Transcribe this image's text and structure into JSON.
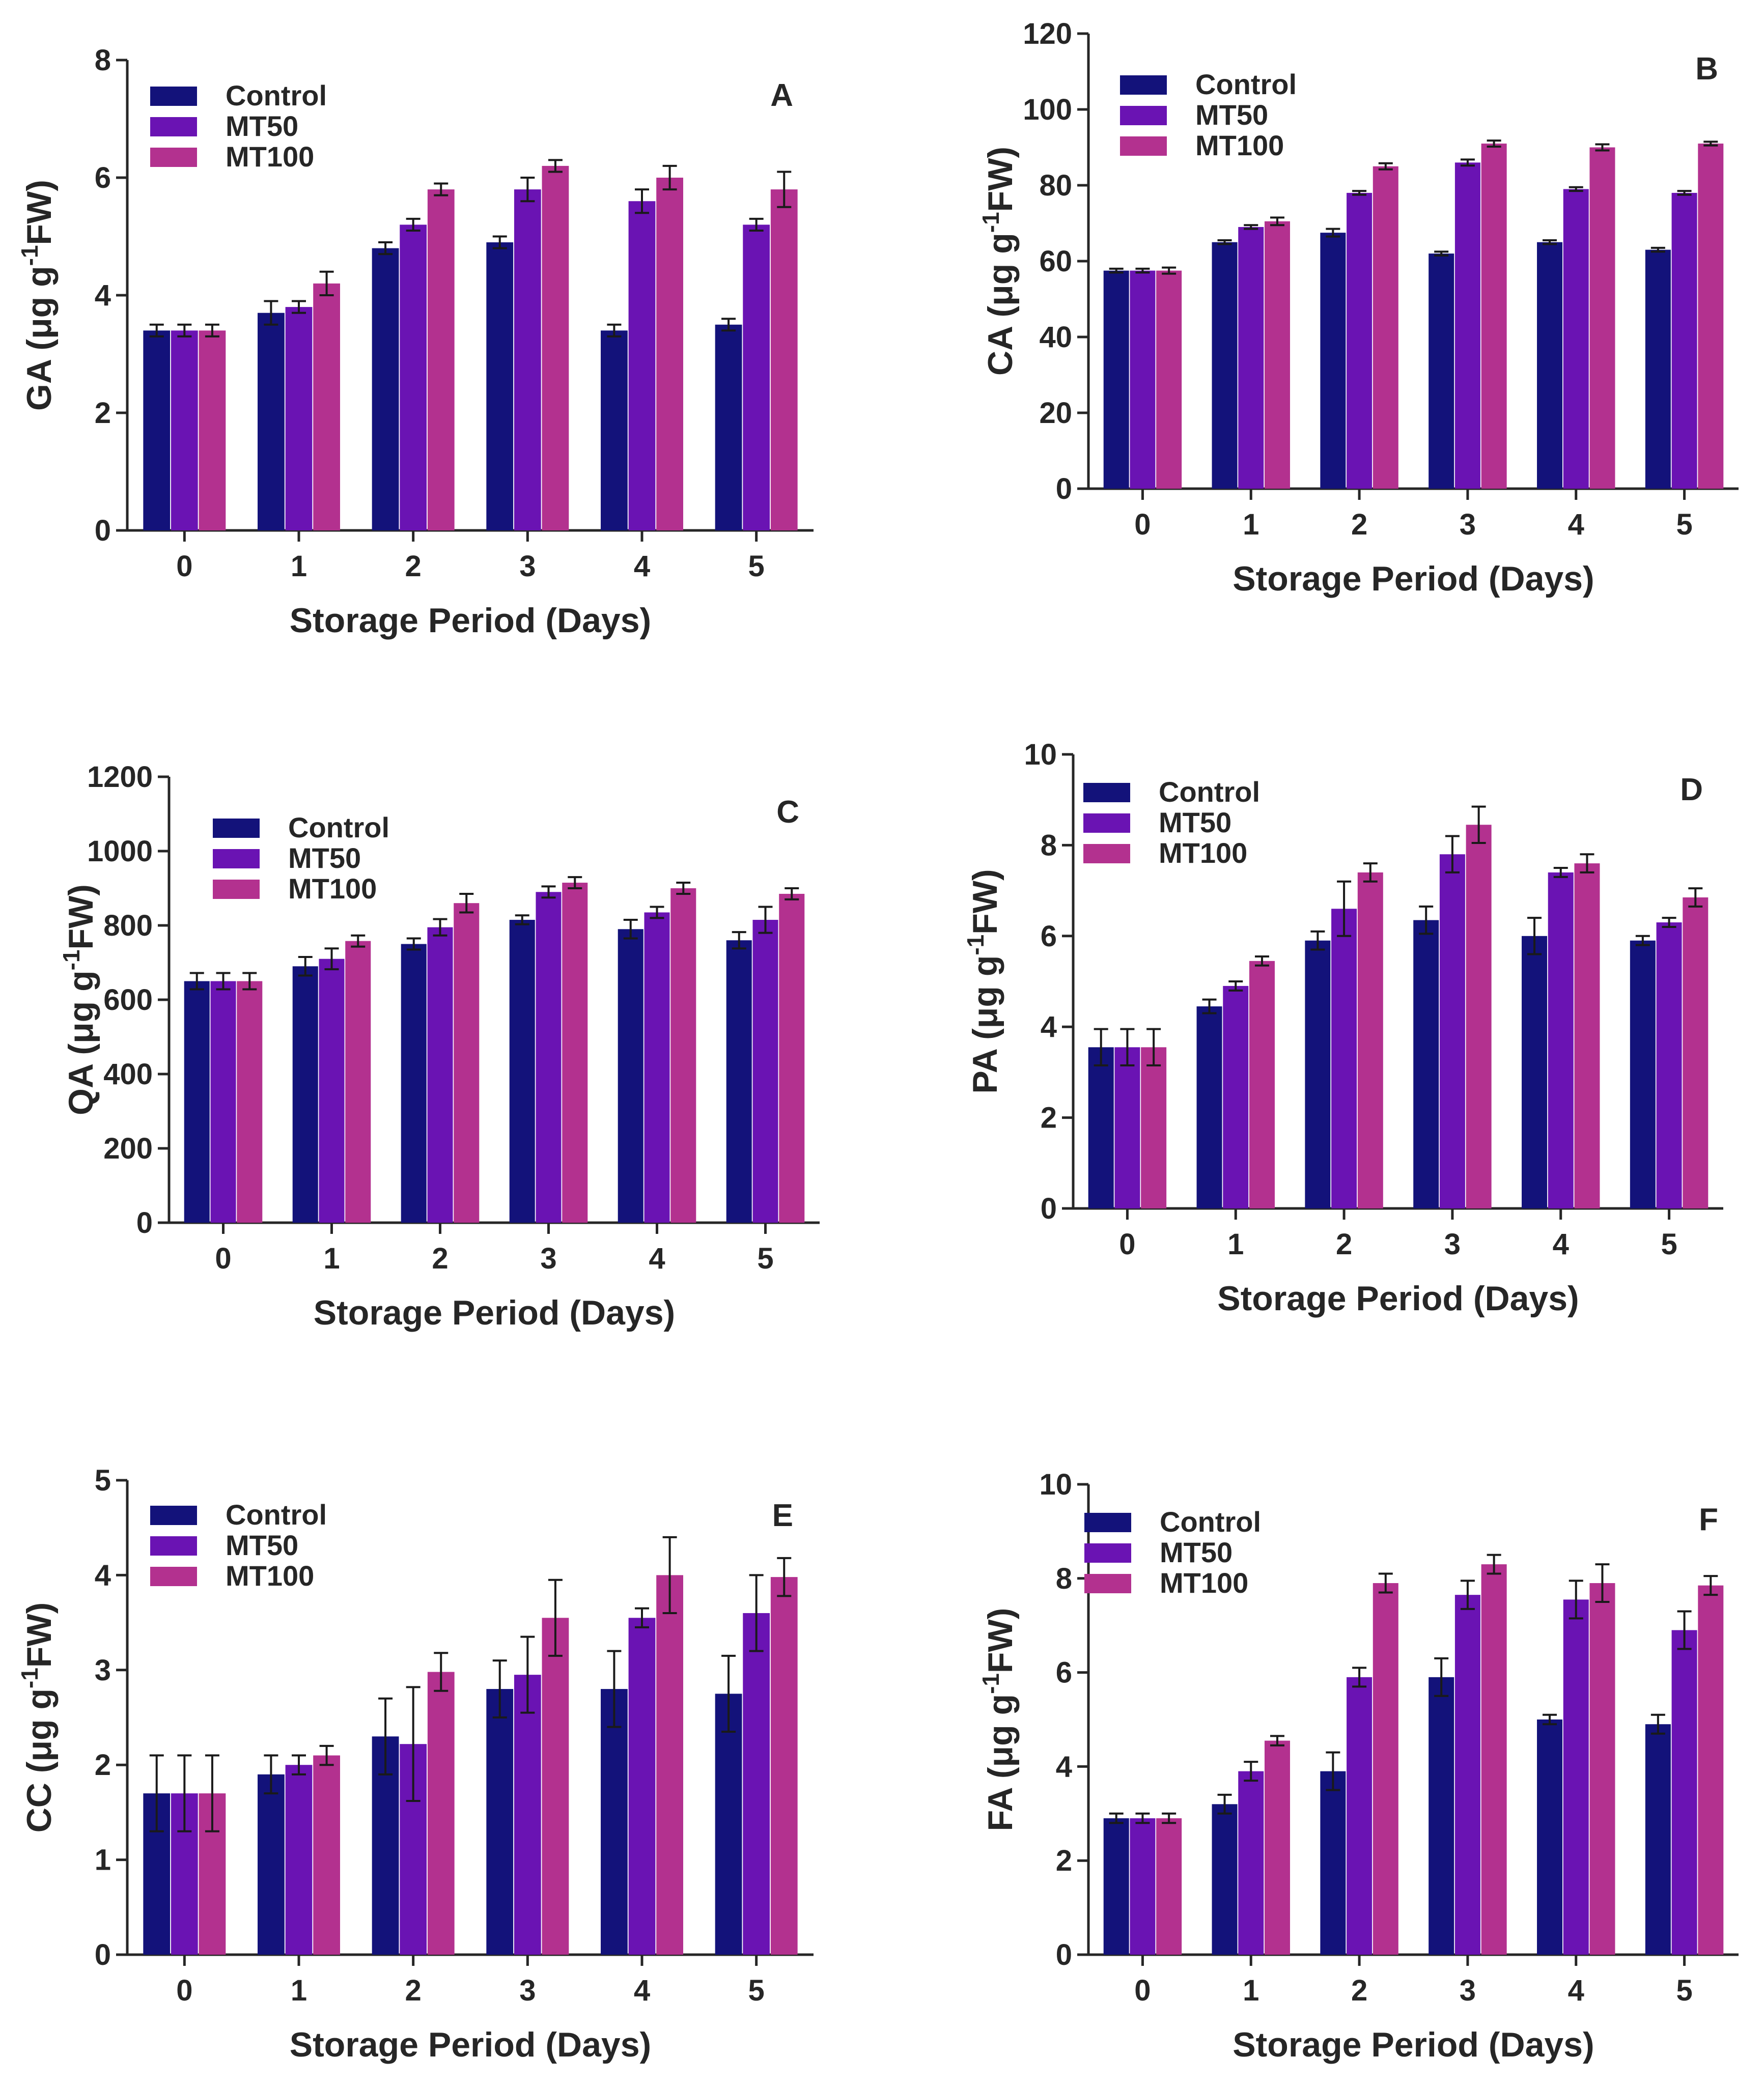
{
  "chart_data": [
    {
      "type": "bar",
      "panel_label": "A",
      "title": "",
      "xlabel": "Storage Period (Days)",
      "ylabel": "GA (μg g-1FW)",
      "ylabel_parts": {
        "prefix": "GA (μg g",
        "sup": "-1",
        "suffix": "FW)"
      },
      "categories": [
        "0",
        "1",
        "2",
        "3",
        "4",
        "5"
      ],
      "ylim": [
        0,
        8
      ],
      "yticks": [
        "0",
        "2",
        "4",
        "6",
        "8"
      ],
      "legend_position": "top-left",
      "series": [
        {
          "name": "Control",
          "values": [
            3.4,
            3.7,
            4.8,
            4.9,
            3.4,
            3.5
          ],
          "errors": [
            0.1,
            0.2,
            0.1,
            0.1,
            0.1,
            0.1
          ]
        },
        {
          "name": "MT50",
          "values": [
            3.4,
            3.8,
            5.2,
            5.8,
            5.6,
            5.2
          ],
          "errors": [
            0.1,
            0.1,
            0.1,
            0.2,
            0.2,
            0.1
          ]
        },
        {
          "name": "MT100",
          "values": [
            3.4,
            4.2,
            5.8,
            6.2,
            6.0,
            5.8
          ],
          "errors": [
            0.1,
            0.2,
            0.1,
            0.1,
            0.2,
            0.3
          ]
        }
      ]
    },
    {
      "type": "bar",
      "panel_label": "B",
      "title": "",
      "xlabel": "Storage Period (Days)",
      "ylabel": "CA (μg g-1FW)",
      "ylabel_parts": {
        "prefix": "CA (μg g",
        "sup": "-1",
        "suffix": "FW)"
      },
      "categories": [
        "0",
        "1",
        "2",
        "3",
        "4",
        "5"
      ],
      "ylim": [
        0,
        120
      ],
      "yticks": [
        "0",
        "20",
        "40",
        "60",
        "80",
        "100",
        "120"
      ],
      "legend_position": "top-left",
      "series": [
        {
          "name": "Control",
          "values": [
            57.5,
            65,
            67.5,
            62,
            65,
            63
          ],
          "errors": [
            0.5,
            0.5,
            1,
            0.5,
            0.5,
            0.5
          ]
        },
        {
          "name": "MT50",
          "values": [
            57.5,
            69,
            78,
            86,
            79,
            78
          ],
          "errors": [
            0.5,
            0.5,
            0.5,
            0.8,
            0.5,
            0.5
          ]
        },
        {
          "name": "MT100",
          "values": [
            57.5,
            70.5,
            85,
            91,
            90,
            91
          ],
          "errors": [
            0.8,
            1,
            0.8,
            0.8,
            0.8,
            0.5
          ]
        }
      ]
    },
    {
      "type": "bar",
      "panel_label": "C",
      "title": "",
      "xlabel": "Storage Period (Days)",
      "ylabel": "QA (μg g-1FW)",
      "ylabel_parts": {
        "prefix": "QA (μg g",
        "sup": "-1",
        "suffix": "FW)"
      },
      "categories": [
        "0",
        "1",
        "2",
        "3",
        "4",
        "5"
      ],
      "ylim": [
        0,
        1200
      ],
      "yticks": [
        "0",
        "200",
        "400",
        "600",
        "800",
        "1000",
        "1200"
      ],
      "legend_position": "top-left",
      "series": [
        {
          "name": "Control",
          "values": [
            650,
            690,
            750,
            815,
            790,
            760
          ],
          "errors": [
            22,
            25,
            15,
            12,
            25,
            22
          ]
        },
        {
          "name": "MT50",
          "values": [
            650,
            710,
            795,
            890,
            835,
            815
          ],
          "errors": [
            22,
            28,
            22,
            15,
            15,
            35
          ]
        },
        {
          "name": "MT100",
          "values": [
            650,
            758,
            860,
            915,
            900,
            885
          ],
          "errors": [
            22,
            15,
            25,
            15,
            15,
            15
          ]
        }
      ]
    },
    {
      "type": "bar",
      "panel_label": "D",
      "title": "",
      "xlabel": "Storage Period (Days)",
      "ylabel": "PA (μg g-1FW)",
      "ylabel_parts": {
        "prefix": "PA (μg g",
        "sup": "-1",
        "suffix": "FW)"
      },
      "categories": [
        "0",
        "1",
        "2",
        "3",
        "4",
        "5"
      ],
      "ylim": [
        0,
        10
      ],
      "yticks": [
        "0",
        "2",
        "4",
        "6",
        "8",
        "10"
      ],
      "legend_position": "top-left",
      "series": [
        {
          "name": "Control",
          "values": [
            3.55,
            4.45,
            5.9,
            6.35,
            6.0,
            5.9
          ],
          "errors": [
            0.4,
            0.15,
            0.2,
            0.3,
            0.4,
            0.1
          ]
        },
        {
          "name": "MT50",
          "values": [
            3.55,
            4.9,
            6.6,
            7.8,
            7.4,
            6.3
          ],
          "errors": [
            0.4,
            0.1,
            0.6,
            0.4,
            0.1,
            0.1
          ]
        },
        {
          "name": "MT100",
          "values": [
            3.55,
            5.45,
            7.4,
            8.45,
            7.6,
            6.85
          ],
          "errors": [
            0.4,
            0.1,
            0.2,
            0.4,
            0.2,
            0.2
          ]
        }
      ]
    },
    {
      "type": "bar",
      "panel_label": "E",
      "title": "",
      "xlabel": "Storage Period (Days)",
      "ylabel": "CC  (μg g-1FW)",
      "ylabel_parts": {
        "prefix": "CC  (μg g",
        "sup": "-1",
        "suffix": "FW)"
      },
      "categories": [
        "0",
        "1",
        "2",
        "3",
        "4",
        "5"
      ],
      "ylim": [
        0,
        5
      ],
      "yticks": [
        "0",
        "1",
        "2",
        "3",
        "4",
        "5"
      ],
      "legend_position": "top-left",
      "series": [
        {
          "name": "Control",
          "values": [
            1.7,
            1.9,
            2.3,
            2.8,
            2.8,
            2.75
          ],
          "errors": [
            0.4,
            0.2,
            0.4,
            0.3,
            0.4,
            0.4
          ]
        },
        {
          "name": "MT50",
          "values": [
            1.7,
            2.0,
            2.22,
            2.95,
            3.55,
            3.6
          ],
          "errors": [
            0.4,
            0.1,
            0.6,
            0.4,
            0.1,
            0.4
          ]
        },
        {
          "name": "MT100",
          "values": [
            1.7,
            2.1,
            2.98,
            3.55,
            4.0,
            3.98
          ],
          "errors": [
            0.4,
            0.1,
            0.2,
            0.4,
            0.4,
            0.2
          ]
        }
      ]
    },
    {
      "type": "bar",
      "panel_label": "F",
      "title": "",
      "xlabel": "Storage Period (Days)",
      "ylabel": "FA  (μg g-1FW)",
      "ylabel_parts": {
        "prefix": "FA  (μg g",
        "sup": "-1",
        "suffix": "FW)"
      },
      "categories": [
        "0",
        "1",
        "2",
        "3",
        "4",
        "5"
      ],
      "ylim": [
        0,
        10
      ],
      "yticks": [
        "0",
        "2",
        "4",
        "6",
        "8",
        "10"
      ],
      "legend_position": "top-left",
      "series": [
        {
          "name": "Control",
          "values": [
            2.9,
            3.2,
            3.9,
            5.9,
            5.0,
            4.9
          ],
          "errors": [
            0.1,
            0.2,
            0.4,
            0.4,
            0.1,
            0.2
          ]
        },
        {
          "name": "MT50",
          "values": [
            2.9,
            3.9,
            5.9,
            7.65,
            7.55,
            6.9
          ],
          "errors": [
            0.1,
            0.2,
            0.2,
            0.3,
            0.4,
            0.4
          ]
        },
        {
          "name": "MT100",
          "values": [
            2.9,
            4.55,
            7.9,
            8.3,
            7.9,
            7.85
          ],
          "errors": [
            0.1,
            0.1,
            0.2,
            0.2,
            0.4,
            0.2
          ]
        }
      ]
    }
  ],
  "colors": {
    "Control": "#13127a",
    "MT50": "#6a13b3",
    "MT100": "#b3318f",
    "axis": "#262626"
  }
}
